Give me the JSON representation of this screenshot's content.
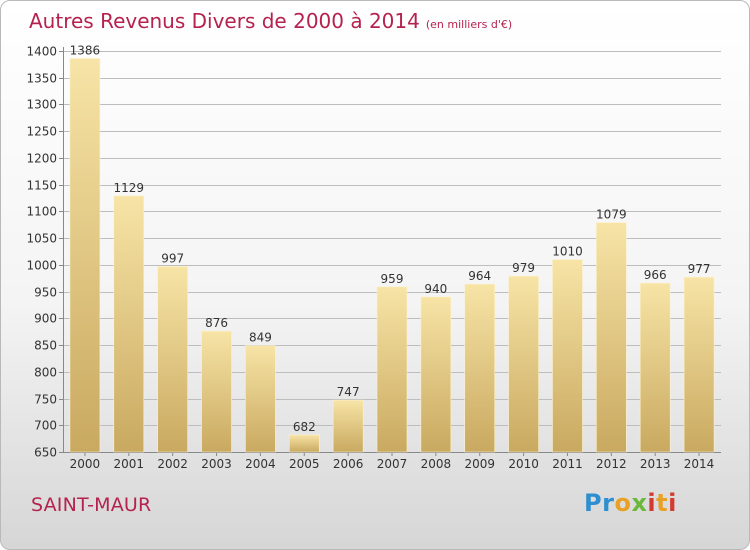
{
  "title": {
    "main": "Autres Revenus Divers de 2000 à 2014",
    "unit": "(en milliers d'€)"
  },
  "location": "SAINT-MAUR",
  "logo": {
    "text": "Proxiti",
    "colors": [
      "#2e8fd0",
      "#e8a123",
      "#6bb83a",
      "#d23b2e"
    ]
  },
  "colors": {
    "bar_top": "#f7e4a6",
    "bar_bottom": "#c9a960",
    "title": "#b5224f",
    "grid": "#bdbdbd"
  },
  "chart_data": {
    "type": "bar",
    "title": "Autres Revenus Divers de 2000 à 2014",
    "subtitle": "(en milliers d'€)",
    "xlabel": "",
    "ylabel": "",
    "categories": [
      "2000",
      "2001",
      "2002",
      "2003",
      "2004",
      "2005",
      "2006",
      "2007",
      "2008",
      "2009",
      "2010",
      "2011",
      "2012",
      "2013",
      "2014"
    ],
    "values": [
      1386,
      1129,
      997,
      876,
      849,
      682,
      747,
      959,
      940,
      964,
      979,
      1010,
      1079,
      966,
      977
    ],
    "ylim": [
      650,
      1400
    ],
    "yticks": [
      650,
      700,
      750,
      800,
      850,
      900,
      950,
      1000,
      1050,
      1100,
      1150,
      1200,
      1250,
      1300,
      1350,
      1400
    ],
    "grid": true,
    "data_labels": true
  }
}
